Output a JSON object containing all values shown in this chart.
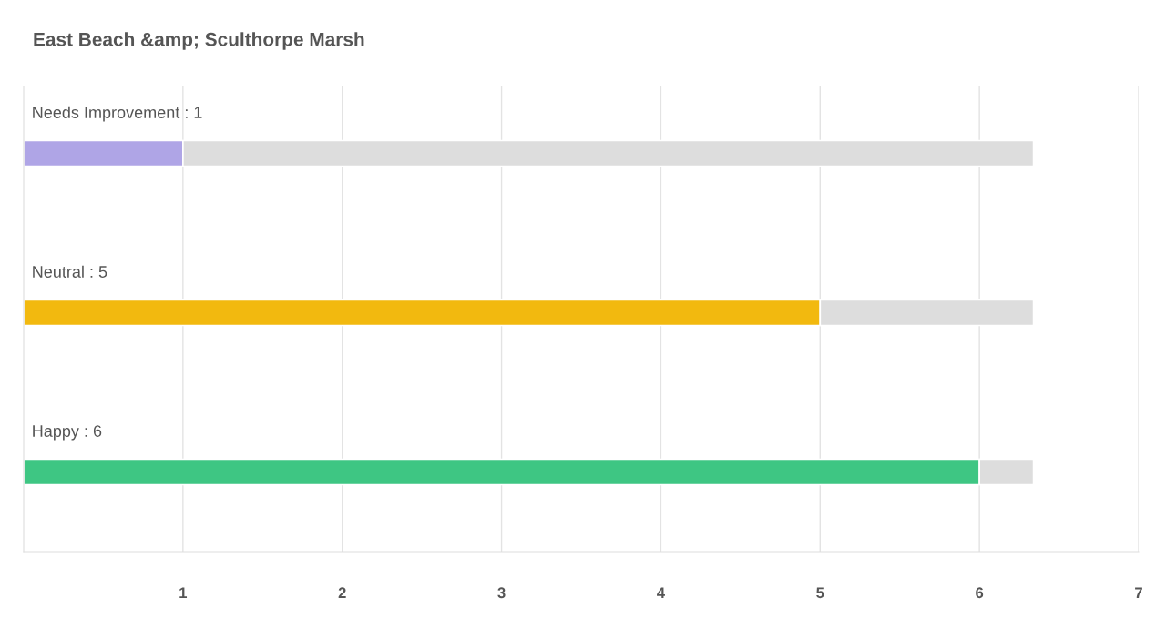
{
  "chart_data": {
    "type": "bar",
    "orientation": "horizontal",
    "title": "East Beach &amp; Sculthorpe Marsh",
    "categories": [
      "Needs Improvement : 1",
      "Neutral : 5",
      "Happy : 6"
    ],
    "series": [
      {
        "colors": [
          "#afa5e6",
          "#f2b90f",
          "#3ec683"
        ],
        "values": [
          1,
          5,
          6
        ]
      },
      {
        "color": "#dddddd",
        "values": [
          5.34,
          1.34,
          0.34
        ]
      }
    ],
    "stacked": true,
    "xlim": [
      0,
      7
    ],
    "xticks": [
      1,
      2,
      3,
      4,
      5,
      6,
      7
    ],
    "grid": "x",
    "legend": false
  }
}
